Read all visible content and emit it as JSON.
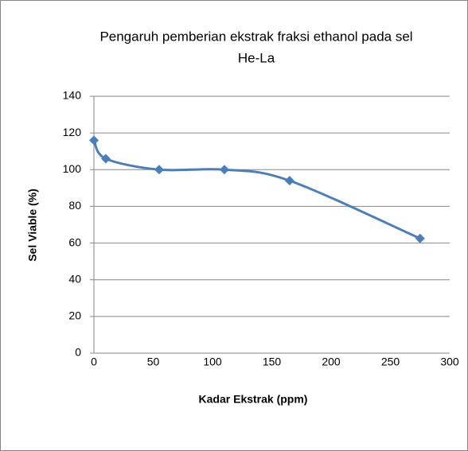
{
  "chart_data": {
    "type": "line",
    "title": [
      "Pengaruh pemberian ekstrak fraksi ethanol pada sel",
      "He-La"
    ],
    "xlabel": "Kadar Ekstrak (ppm)",
    "ylabel": "Sel Viable (%)",
    "x": [
      0,
      10,
      55,
      110,
      165,
      275
    ],
    "series": [
      {
        "name": "Sel Viable",
        "color": "#4a7ebb",
        "values": [
          116,
          106,
          100,
          100,
          94,
          62.5
        ]
      }
    ],
    "xlim": [
      0,
      300
    ],
    "xticks": [
      0,
      50,
      100,
      150,
      200,
      250,
      300
    ],
    "ylim": [
      0,
      140
    ],
    "yticks": [
      0,
      20,
      40,
      60,
      80,
      100,
      120,
      140
    ],
    "grid": true,
    "smooth": true,
    "marker": "diamond"
  }
}
